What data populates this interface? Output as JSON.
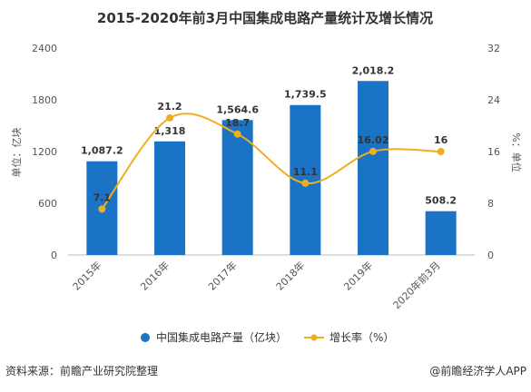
{
  "chart_data": {
    "type": "bar",
    "title": "2015-2020年前3月中国集成电路产量统计及增长情况",
    "categories": [
      "2015年",
      "2016年",
      "2017年",
      "2018年",
      "2019年",
      "2020年前3月"
    ],
    "series": [
      {
        "name": "中国集成电路产量（亿块）",
        "type": "bar",
        "axis": "left",
        "color": "#1a73c5",
        "values": [
          1087.2,
          1318,
          1564.6,
          1739.5,
          2018.2,
          508.2
        ],
        "labels": [
          "1,087.2",
          "1,318",
          "1,564.6",
          "1,739.5",
          "2,018.2",
          "508.2"
        ]
      },
      {
        "name": "增长率（%）",
        "type": "line",
        "axis": "right",
        "color": "#f0ae1c",
        "values": [
          7.1,
          21.2,
          18.7,
          11.1,
          16.02,
          16
        ],
        "labels": [
          "7.1",
          "21.2",
          "18.7",
          "11.1",
          "16.02",
          "16"
        ]
      }
    ],
    "ylabel": "单位：亿块",
    "y2label": "%：单位",
    "ylim": [
      0,
      2400
    ],
    "y2lim": [
      0,
      32
    ],
    "yticks": [
      "0",
      "600",
      "1200",
      "1800",
      "2400"
    ],
    "y2ticks": [
      "0",
      "8",
      "16",
      "24",
      "32"
    ],
    "grid": false,
    "legend": "bottom-center"
  },
  "footer": {
    "source": "资料来源：前瞻产业研究院整理",
    "brand": "@前瞻经济学人APP"
  }
}
